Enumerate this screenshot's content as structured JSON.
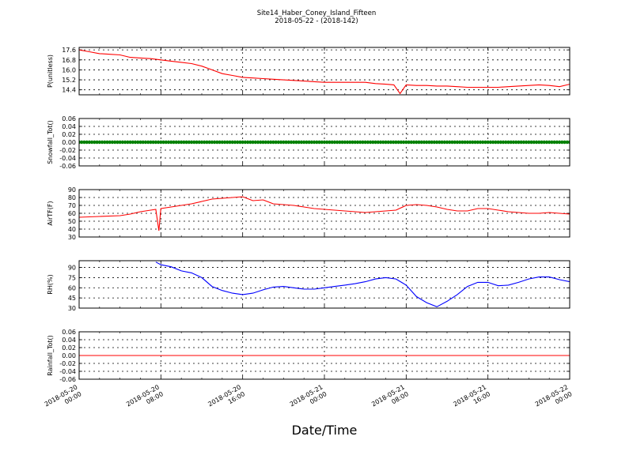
{
  "chart_data": {
    "title": "Site14_Haber_Coney_Island_Fifteen",
    "subtitle": "2018-05-22 - (2018-142)",
    "xlabel": "Date/Time",
    "x_ticks": [
      {
        "l1": "2018-05-20",
        "l2": "00:00"
      },
      {
        "l1": "2018-05-20",
        "l2": "08:00"
      },
      {
        "l1": "2018-05-20",
        "l2": "16:00"
      },
      {
        "l1": "2018-05-21",
        "l2": "00:00"
      },
      {
        "l1": "2018-05-21",
        "l2": "08:00"
      },
      {
        "l1": "2018-05-21",
        "l2": "16:00"
      },
      {
        "l1": "2018-05-22",
        "l2": "00:00"
      }
    ],
    "x_range_hours": [
      0,
      48
    ],
    "grid": true,
    "panels": [
      {
        "type": "line",
        "ylabel": "P(unitless)",
        "ylim": [
          14.0,
          17.8
        ],
        "yticks": [
          "17.6",
          "16.8",
          "16.0",
          "15.2",
          "14.4"
        ],
        "ytick_values": [
          17.6,
          16.8,
          16.0,
          15.2,
          14.4
        ],
        "color": "#ff0000",
        "style": "line",
        "x": [
          0,
          1,
          2,
          3,
          4,
          5,
          6,
          7,
          8,
          9,
          10,
          11,
          12,
          13,
          14,
          15,
          16,
          17,
          18,
          19,
          20,
          21,
          22,
          23,
          24,
          25,
          26,
          27,
          28,
          29,
          30,
          30.8,
          31.4,
          32,
          33,
          34,
          35,
          36,
          37,
          38,
          39,
          40,
          41,
          42,
          43,
          44,
          45,
          46,
          47,
          48
        ],
        "y": [
          17.6,
          17.45,
          17.3,
          17.25,
          17.2,
          17.0,
          16.95,
          16.9,
          16.8,
          16.7,
          16.6,
          16.5,
          16.3,
          16.0,
          15.7,
          15.55,
          15.4,
          15.35,
          15.3,
          15.25,
          15.2,
          15.15,
          15.1,
          15.05,
          15.0,
          15.0,
          15.0,
          15.0,
          15.0,
          14.9,
          14.85,
          14.8,
          14.1,
          14.8,
          14.75,
          14.75,
          14.7,
          14.7,
          14.65,
          14.6,
          14.6,
          14.6,
          14.6,
          14.65,
          14.7,
          14.75,
          14.8,
          14.75,
          14.65,
          14.85
        ]
      },
      {
        "type": "scatter",
        "ylabel": "Snowfall_Tot()",
        "ylim": [
          -0.06,
          0.06
        ],
        "yticks": [
          "0.06",
          "0.04",
          "0.02",
          "0.00",
          "-0.02",
          "-0.04",
          "-0.06"
        ],
        "ytick_values": [
          0.06,
          0.04,
          0.02,
          0.0,
          -0.02,
          -0.04,
          -0.06
        ],
        "color": "#008000",
        "style": "markers",
        "constant_value": 0.0,
        "x_step": 0.25
      },
      {
        "type": "line",
        "ylabel": "AirTF(F)",
        "ylim": [
          30,
          90
        ],
        "yticks": [
          "90",
          "80",
          "70",
          "60",
          "50",
          "40",
          "30"
        ],
        "ytick_values": [
          90,
          80,
          70,
          60,
          50,
          40,
          30
        ],
        "color": "#ff0000",
        "style": "line",
        "x": [
          0,
          2,
          4,
          5,
          6,
          7,
          7.5,
          7.8,
          8,
          9,
          10,
          11,
          12,
          13,
          14,
          15,
          16,
          17,
          18,
          19,
          20,
          21,
          22,
          23,
          24,
          25,
          26,
          27,
          28,
          29,
          30,
          31,
          32,
          33,
          34,
          35,
          36,
          37,
          38,
          39,
          40,
          41,
          42,
          43,
          44,
          45,
          46,
          47,
          48
        ],
        "y": [
          55,
          56,
          57,
          59,
          62,
          64,
          65,
          38,
          66,
          68,
          70,
          72,
          75,
          78,
          79,
          80,
          81,
          76,
          77,
          72,
          71,
          70,
          68,
          66,
          65,
          64,
          63,
          62,
          61,
          62,
          63,
          64,
          70,
          71,
          70,
          68,
          65,
          63,
          63,
          66,
          66,
          64,
          62,
          61,
          60,
          60,
          61,
          60,
          59
        ]
      },
      {
        "type": "line",
        "ylabel": "RH(%)",
        "ylim": [
          30,
          100
        ],
        "yticks": [
          "90",
          "75",
          "60",
          "45",
          "30"
        ],
        "ytick_values": [
          90,
          75,
          60,
          45,
          30
        ],
        "color": "#0000ff",
        "style": "line",
        "x": [
          7.5,
          8,
          9,
          10,
          11,
          12,
          13,
          14,
          15,
          16,
          17,
          18,
          19,
          20,
          21,
          22,
          23,
          24,
          25,
          26,
          27,
          28,
          29,
          30,
          31,
          32,
          33,
          34,
          35,
          36,
          37,
          38,
          39,
          40,
          41,
          42,
          43,
          44,
          45,
          46,
          47,
          48
        ],
        "y": [
          98,
          94,
          91,
          85,
          82,
          75,
          62,
          56,
          52,
          50,
          52,
          57,
          61,
          62,
          60,
          58,
          58,
          60,
          62,
          64,
          66,
          69,
          73,
          75,
          73,
          64,
          47,
          38,
          32,
          40,
          50,
          62,
          68,
          68,
          63,
          64,
          68,
          73,
          76,
          76,
          72,
          69
        ]
      },
      {
        "type": "line",
        "ylabel": "Rainfall_Tot()",
        "ylim": [
          -0.06,
          0.06
        ],
        "yticks": [
          "0.06",
          "0.04",
          "0.02",
          "0.00",
          "-0.02",
          "-0.04",
          "-0.06"
        ],
        "ytick_values": [
          0.06,
          0.04,
          0.02,
          0.0,
          -0.02,
          -0.04,
          -0.06
        ],
        "color": "#ff0000",
        "style": "line",
        "x": [
          0,
          48
        ],
        "y": [
          0.0,
          0.0
        ]
      }
    ]
  }
}
